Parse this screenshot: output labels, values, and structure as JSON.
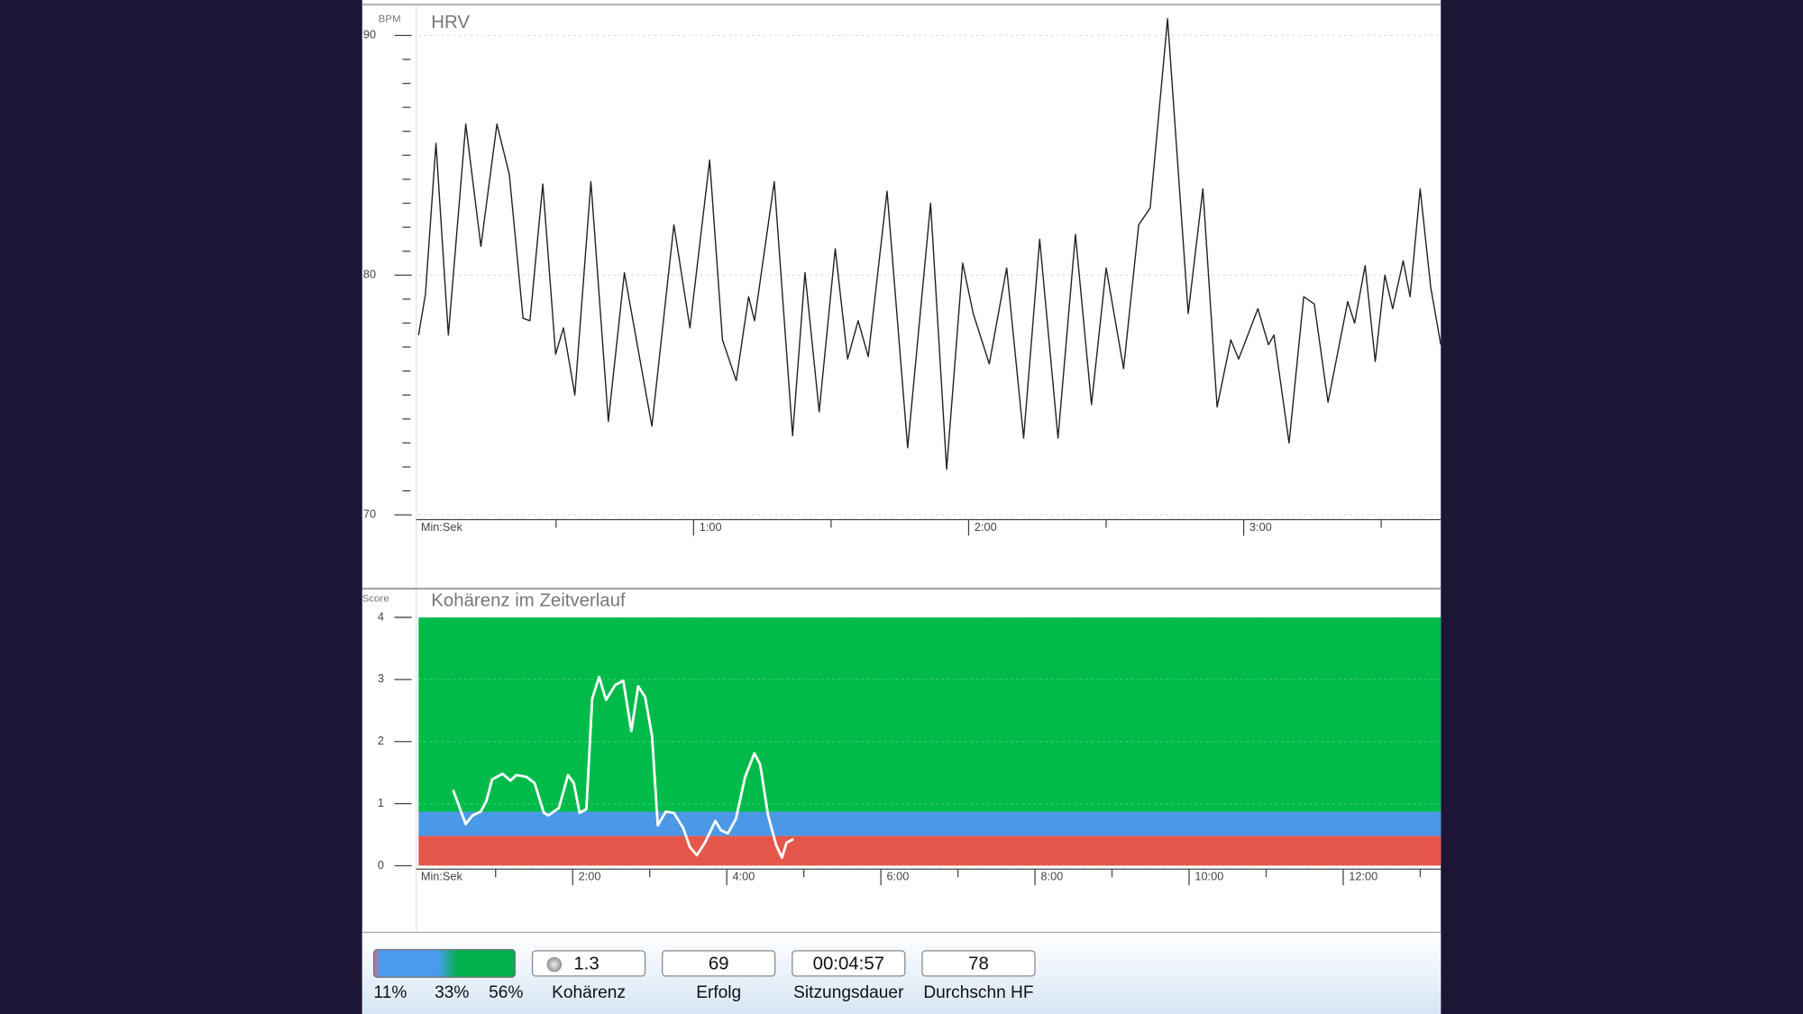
{
  "chart_data": [
    {
      "type": "line",
      "title": "HRV",
      "ylabel": "BPM",
      "xlabel": "Min:Sek",
      "xlim": [
        0,
        223
      ],
      "ylim": [
        69.8,
        91.0
      ],
      "xticks": [
        {
          "value": 60,
          "label": "1:00"
        },
        {
          "value": 120,
          "label": "2:00"
        },
        {
          "value": 180,
          "label": "3:00"
        }
      ],
      "xminorticks": [
        30,
        90,
        150,
        210
      ],
      "yticks": [
        70,
        80,
        90
      ],
      "yminorticks": [
        71,
        72,
        73,
        74,
        75,
        76,
        77,
        78,
        79,
        81,
        82,
        83,
        84,
        85,
        86,
        87,
        88,
        89
      ],
      "grid": true,
      "color": "#222222",
      "x": [
        0,
        1.5,
        3.8,
        6.5,
        10.3,
        13.6,
        17.1,
        19.8,
        22.8,
        24.3,
        27.1,
        29.9,
        31.6,
        34.1,
        37.6,
        41.4,
        44.9,
        50.9,
        55.7,
        59.2,
        63.5,
        66.3,
        69.3,
        72.0,
        73.3,
        77.6,
        81.6,
        84.3,
        87.4,
        90.9,
        93.6,
        95.9,
        98.1,
        102.2,
        106.7,
        111.7,
        115.2,
        118.7,
        121.0,
        124.5,
        128.3,
        132.0,
        135.5,
        139.5,
        143.3,
        146.8,
        150.0,
        153.8,
        157.1,
        159.6,
        163.4,
        167.9,
        171.1,
        174.2,
        177.2,
        178.9,
        183.1,
        185.4,
        186.6,
        189.9,
        193.1,
        195.4,
        198.4,
        202.7,
        204.2,
        206.5,
        208.7,
        210.8,
        212.5,
        214.8,
        216.3,
        218.5,
        220.8,
        223.0
      ],
      "values": [
        77.5,
        79.2,
        85.5,
        77.5,
        86.3,
        81.2,
        86.3,
        84.2,
        78.2,
        78.1,
        83.8,
        76.7,
        77.8,
        75.0,
        83.9,
        73.9,
        80.1,
        73.7,
        82.1,
        77.8,
        84.8,
        77.3,
        75.6,
        79.1,
        78.1,
        83.9,
        73.3,
        80.1,
        74.3,
        81.1,
        76.5,
        78.1,
        76.6,
        83.5,
        72.8,
        83.0,
        71.9,
        80.5,
        78.4,
        76.3,
        80.3,
        73.2,
        81.5,
        73.2,
        81.7,
        74.6,
        80.3,
        76.1,
        82.1,
        82.8,
        90.7,
        78.4,
        83.6,
        74.5,
        77.3,
        76.5,
        78.6,
        77.1,
        77.5,
        73.0,
        79.1,
        78.8,
        74.7,
        78.9,
        78.0,
        80.4,
        76.4,
        80.0,
        78.6,
        80.6,
        79.1,
        83.6,
        79.5,
        77.1
      ]
    },
    {
      "type": "line",
      "title": "Kohärenz im Zeitverlauf",
      "ylabel": "Score",
      "xlabel": "Min:Sek",
      "xlim": [
        0,
        796
      ],
      "ylim": [
        0,
        4
      ],
      "xticks": [
        {
          "value": 120,
          "label": "2:00"
        },
        {
          "value": 240,
          "label": "4:00"
        },
        {
          "value": 360,
          "label": "6:00"
        },
        {
          "value": 480,
          "label": "8:00"
        },
        {
          "value": 600,
          "label": "10:00"
        },
        {
          "value": 720,
          "label": "12:00"
        }
      ],
      "xminorticks": [
        60,
        180,
        300,
        420,
        540,
        660,
        780
      ],
      "yticks": [
        0,
        1,
        2,
        3,
        4
      ],
      "grid": true,
      "color": "#ffffff",
      "bands": [
        {
          "from": 0,
          "to": 0.48,
          "color": "#e5574b"
        },
        {
          "from": 0.48,
          "to": 0.87,
          "color": "#4a98e6"
        },
        {
          "from": 0.87,
          "to": 4,
          "color": "#00bb4a"
        }
      ],
      "x": [
        26.9,
        36.7,
        42.1,
        48.4,
        52.8,
        57.3,
        65.4,
        71.6,
        76.1,
        84.2,
        90.4,
        97.6,
        101.2,
        109.3,
        116.4,
        120.9,
        125.4,
        130.7,
        135.2,
        140.6,
        146.0,
        153.1,
        159.4,
        165.7,
        171.0,
        176.4,
        181.8,
        186.3,
        192.5,
        198.8,
        206.0,
        211.3,
        216.7,
        223.0,
        231.1,
        235.5,
        240.9,
        247.2,
        254.3,
        261.5,
        266.0,
        272.2,
        278.5,
        283.0,
        286.6,
        291.9
      ],
      "values": [
        1.22,
        0.67,
        0.81,
        0.87,
        1.04,
        1.39,
        1.48,
        1.37,
        1.46,
        1.43,
        1.33,
        0.85,
        0.81,
        0.93,
        1.46,
        1.33,
        0.85,
        0.91,
        2.69,
        3.04,
        2.67,
        2.91,
        2.98,
        2.17,
        2.89,
        2.72,
        2.09,
        0.65,
        0.87,
        0.85,
        0.61,
        0.3,
        0.17,
        0.37,
        0.72,
        0.57,
        0.52,
        0.76,
        1.43,
        1.81,
        1.63,
        0.81,
        0.33,
        0.13,
        0.37,
        0.43
      ]
    }
  ],
  "status_bar": {
    "zone_shares": [
      "11%",
      "33%",
      "56%"
    ],
    "fields": [
      {
        "value": "1.3",
        "label": "Kohärenz"
      },
      {
        "value": "69",
        "label": "Erfolg"
      },
      {
        "value": "00:04:57",
        "label": "Sitzungsdauer"
      },
      {
        "value": "78",
        "label": "Durchschn HF"
      }
    ]
  }
}
